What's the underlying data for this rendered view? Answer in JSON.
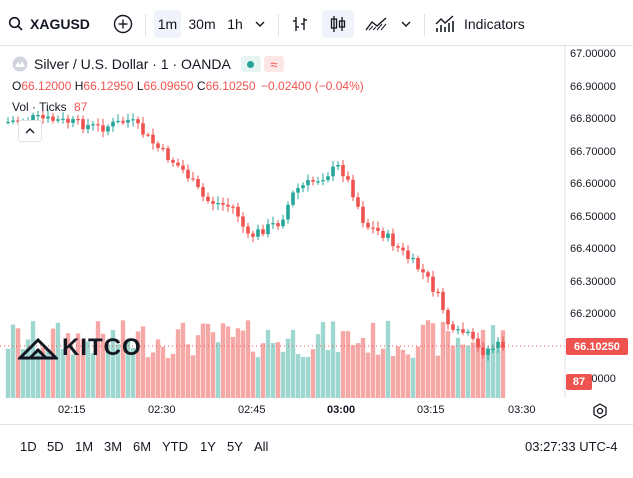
{
  "toolbar": {
    "symbol": "XAGUSD",
    "intervals": [
      "1m",
      "30m",
      "1h"
    ],
    "indicators_label": "Indicators"
  },
  "legend": {
    "title": "Silver / U.S. Dollar · 1 · OANDA",
    "open_label": "O",
    "open": "66.12000",
    "high_label": "H",
    "high": "66.12950",
    "low_label": "L",
    "low": "66.09650",
    "close_label": "C",
    "close": "66.10250",
    "change": "−0.02400 (−0.04%)",
    "vol_label": "Vol · Ticks",
    "vol_value": "87"
  },
  "price_axis": [
    "67.00000",
    "66.90000",
    "66.80000",
    "66.70000",
    "66.60000",
    "66.50000",
    "66.40000",
    "66.30000",
    "66.20000",
    "66.10250",
    "66.00000"
  ],
  "last_price": "66.10250",
  "last_volume": "87",
  "time_axis": [
    "02:15",
    "02:30",
    "02:45",
    "03:00",
    "03:15",
    "03:30"
  ],
  "watermark": "KITCO",
  "ranges": [
    "1D",
    "5D",
    "1M",
    "3M",
    "6M",
    "YTD",
    "1Y",
    "5Y",
    "All"
  ],
  "clock": "03:27:33 UTC-4",
  "colors": {
    "up": "#26a69a",
    "down": "#ef5350",
    "up_vol": "#9ed6d0",
    "down_vol": "#f6a8a6"
  }
}
